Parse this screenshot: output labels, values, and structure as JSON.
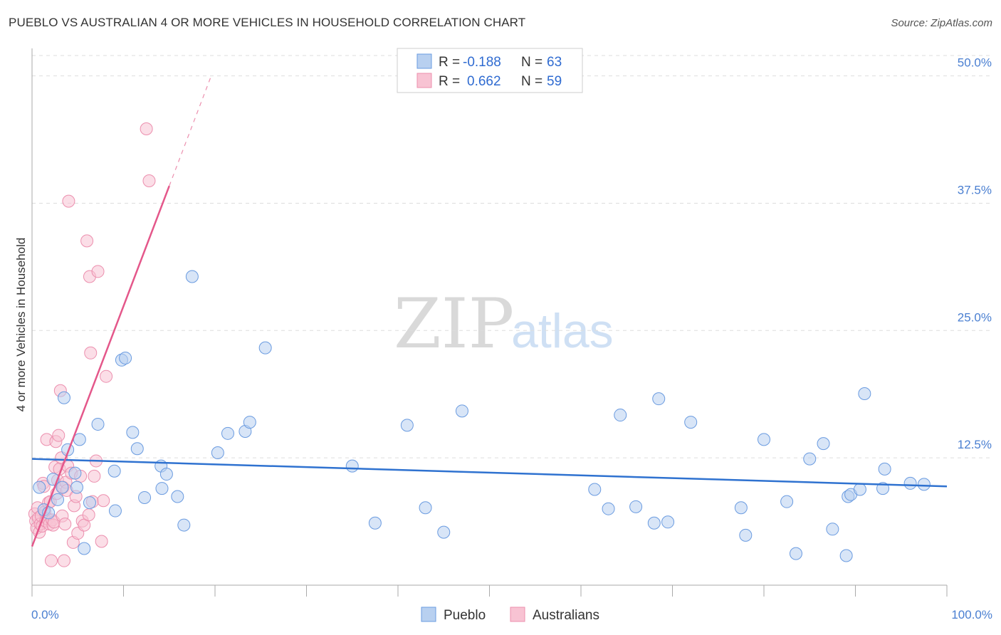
{
  "header": {
    "title": "PUEBLO VS AUSTRALIAN 4 OR MORE VEHICLES IN HOUSEHOLD CORRELATION CHART",
    "source": "Source: ZipAtlas.com"
  },
  "watermark": {
    "part1": "ZIP",
    "part2": "atlas"
  },
  "legend": {
    "pueblo": {
      "r_label": "R = ",
      "r_value": "-0.188",
      "n_label": "N = ",
      "n_value": "63"
    },
    "australians": {
      "r_label": "R = ",
      "r_value": "0.662",
      "n_label": "N = ",
      "n_value": "59"
    }
  },
  "bottom_legend": {
    "pueblo": "Pueblo",
    "australians": "Australians"
  },
  "colors": {
    "pueblo_fill": "#b8d0f0",
    "pueblo_stroke": "#6a9be0",
    "pueblo_line": "#2f72d0",
    "australians_fill": "#f8c3d3",
    "australians_stroke": "#ec8fae",
    "australians_line": "#e4578a",
    "grid": "#dddddd",
    "tick_label": "#4a7fd1"
  },
  "chart_data": {
    "type": "scatter",
    "title": "PUEBLO VS AUSTRALIAN 4 OR MORE VEHICLES IN HOUSEHOLD CORRELATION CHART",
    "xlabel": "",
    "ylabel": "4 or more Vehicles in Household",
    "xlim": [
      0,
      100
    ],
    "ylim": [
      0,
      52
    ],
    "x_tick_labels": {
      "min": "0.0%",
      "max": "100.0%"
    },
    "y_ticks": [
      {
        "value": 12.5,
        "label": "12.5%"
      },
      {
        "value": 25.0,
        "label": "25.0%"
      },
      {
        "value": 37.5,
        "label": "37.5%"
      },
      {
        "value": 50.0,
        "label": "50.0%"
      }
    ],
    "series": [
      {
        "name": "Pueblo",
        "trend": {
          "x0": 0,
          "y0": 12.4,
          "x1": 100,
          "y1": 9.7
        },
        "points": [
          [
            0.8,
            9.6
          ],
          [
            1.3,
            7.4
          ],
          [
            1.8,
            7.1
          ],
          [
            2.3,
            10.4
          ],
          [
            2.8,
            8.4
          ],
          [
            3.3,
            9.6
          ],
          [
            3.5,
            18.4
          ],
          [
            3.9,
            13.3
          ],
          [
            4.7,
            11.0
          ],
          [
            4.9,
            9.6
          ],
          [
            5.2,
            14.3
          ],
          [
            5.7,
            3.6
          ],
          [
            6.3,
            8.1
          ],
          [
            7.2,
            15.8
          ],
          [
            9.0,
            11.2
          ],
          [
            9.1,
            7.3
          ],
          [
            9.8,
            22.1
          ],
          [
            10.2,
            22.3
          ],
          [
            11.0,
            15.0
          ],
          [
            11.5,
            13.4
          ],
          [
            12.3,
            8.6
          ],
          [
            14.1,
            11.7
          ],
          [
            14.2,
            9.5
          ],
          [
            14.7,
            10.9
          ],
          [
            15.9,
            8.7
          ],
          [
            16.6,
            5.9
          ],
          [
            17.5,
            30.3
          ],
          [
            20.3,
            13.0
          ],
          [
            21.4,
            14.9
          ],
          [
            23.3,
            15.1
          ],
          [
            23.8,
            16.0
          ],
          [
            25.5,
            23.3
          ],
          [
            35.0,
            11.7
          ],
          [
            37.5,
            6.1
          ],
          [
            41.0,
            15.7
          ],
          [
            43.0,
            7.6
          ],
          [
            45.0,
            5.2
          ],
          [
            47.0,
            17.1
          ],
          [
            61.5,
            9.4
          ],
          [
            63.0,
            7.5
          ],
          [
            64.3,
            16.7
          ],
          [
            66.0,
            7.7
          ],
          [
            68.0,
            6.1
          ],
          [
            68.5,
            18.3
          ],
          [
            69.5,
            6.2
          ],
          [
            72.0,
            16.0
          ],
          [
            77.5,
            7.6
          ],
          [
            78.0,
            4.9
          ],
          [
            80.0,
            14.3
          ],
          [
            82.5,
            8.2
          ],
          [
            83.5,
            3.1
          ],
          [
            85.0,
            12.4
          ],
          [
            86.5,
            13.9
          ],
          [
            87.5,
            5.5
          ],
          [
            89.0,
            2.9
          ],
          [
            89.2,
            8.7
          ],
          [
            89.5,
            8.9
          ],
          [
            90.5,
            9.4
          ],
          [
            91.0,
            18.8
          ],
          [
            93.0,
            9.5
          ],
          [
            93.2,
            11.4
          ],
          [
            96.0,
            10.0
          ],
          [
            97.5,
            9.9
          ]
        ]
      },
      {
        "name": "Australians",
        "trend": {
          "x0": 0,
          "y0": 3.8,
          "x1": 15.0,
          "y1": 39.2,
          "dash_x1": 19.5,
          "dash_y1": 49.8
        },
        "points": [
          [
            0.3,
            7.0
          ],
          [
            0.4,
            6.3
          ],
          [
            0.5,
            5.6
          ],
          [
            0.6,
            7.6
          ],
          [
            0.7,
            6.6
          ],
          [
            0.8,
            5.2
          ],
          [
            0.9,
            6.0
          ],
          [
            1.0,
            6.8
          ],
          [
            1.1,
            5.8
          ],
          [
            1.2,
            10.0
          ],
          [
            1.3,
            9.7
          ],
          [
            1.4,
            7.2
          ],
          [
            1.5,
            6.3
          ],
          [
            1.6,
            14.3
          ],
          [
            1.7,
            6.5
          ],
          [
            1.8,
            8.1
          ],
          [
            1.9,
            6.0
          ],
          [
            2.0,
            8.2
          ],
          [
            2.1,
            2.4
          ],
          [
            2.2,
            6.4
          ],
          [
            2.3,
            5.9
          ],
          [
            2.4,
            6.2
          ],
          [
            2.5,
            11.6
          ],
          [
            2.6,
            14.1
          ],
          [
            2.7,
            9.0
          ],
          [
            2.8,
            10.3
          ],
          [
            2.9,
            14.7
          ],
          [
            3.0,
            11.4
          ],
          [
            3.1,
            19.1
          ],
          [
            3.2,
            12.5
          ],
          [
            3.3,
            6.8
          ],
          [
            3.4,
            9.6
          ],
          [
            3.5,
            2.4
          ],
          [
            3.6,
            6.0
          ],
          [
            3.7,
            10.1
          ],
          [
            3.8,
            9.3
          ],
          [
            3.9,
            11.7
          ],
          [
            4.0,
            37.7
          ],
          [
            4.3,
            11.0
          ],
          [
            4.5,
            4.2
          ],
          [
            4.6,
            7.8
          ],
          [
            4.8,
            8.7
          ],
          [
            5.0,
            5.1
          ],
          [
            5.3,
            10.7
          ],
          [
            5.5,
            6.3
          ],
          [
            5.7,
            5.9
          ],
          [
            6.0,
            33.8
          ],
          [
            6.2,
            6.9
          ],
          [
            6.3,
            30.3
          ],
          [
            6.4,
            22.8
          ],
          [
            6.6,
            8.2
          ],
          [
            6.8,
            10.7
          ],
          [
            7.0,
            12.2
          ],
          [
            7.2,
            30.8
          ],
          [
            7.6,
            4.3
          ],
          [
            7.8,
            8.3
          ],
          [
            8.1,
            20.5
          ],
          [
            12.5,
            44.8
          ],
          [
            12.8,
            39.7
          ]
        ]
      }
    ]
  }
}
